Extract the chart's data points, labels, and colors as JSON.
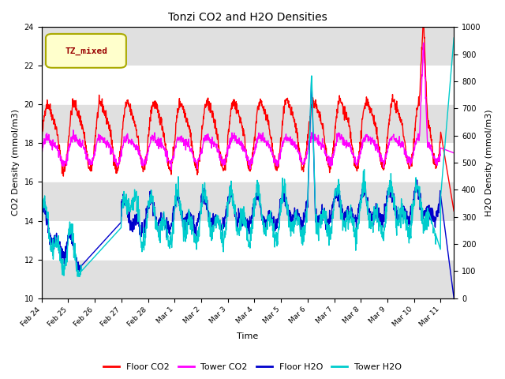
{
  "title": "Tonzi CO2 and H2O Densities",
  "xlabel": "Time",
  "ylabel_left": "CO2 Density (mmol/m3)",
  "ylabel_right": "H2O Density (mmol/m3)",
  "ylim_left": [
    10,
    24
  ],
  "ylim_right": [
    0,
    1000
  ],
  "yticks_left": [
    10,
    12,
    14,
    16,
    18,
    20,
    22,
    24
  ],
  "yticks_right": [
    0,
    100,
    200,
    300,
    400,
    500,
    600,
    700,
    800,
    900,
    1000
  ],
  "annotation_text": "TZ_mixed",
  "annotation_facecolor": "#ffffcc",
  "annotation_edgecolor": "#aaaa00",
  "annotation_textcolor": "#990000",
  "legend_entries": [
    "Floor CO2",
    "Tower CO2",
    "Floor H2O",
    "Tower H2O"
  ],
  "line_colors": [
    "#ff0000",
    "#ff00ff",
    "#0000cc",
    "#00cccc"
  ],
  "band_color": "#e0e0e0",
  "n_points": 1500,
  "seed": 42
}
